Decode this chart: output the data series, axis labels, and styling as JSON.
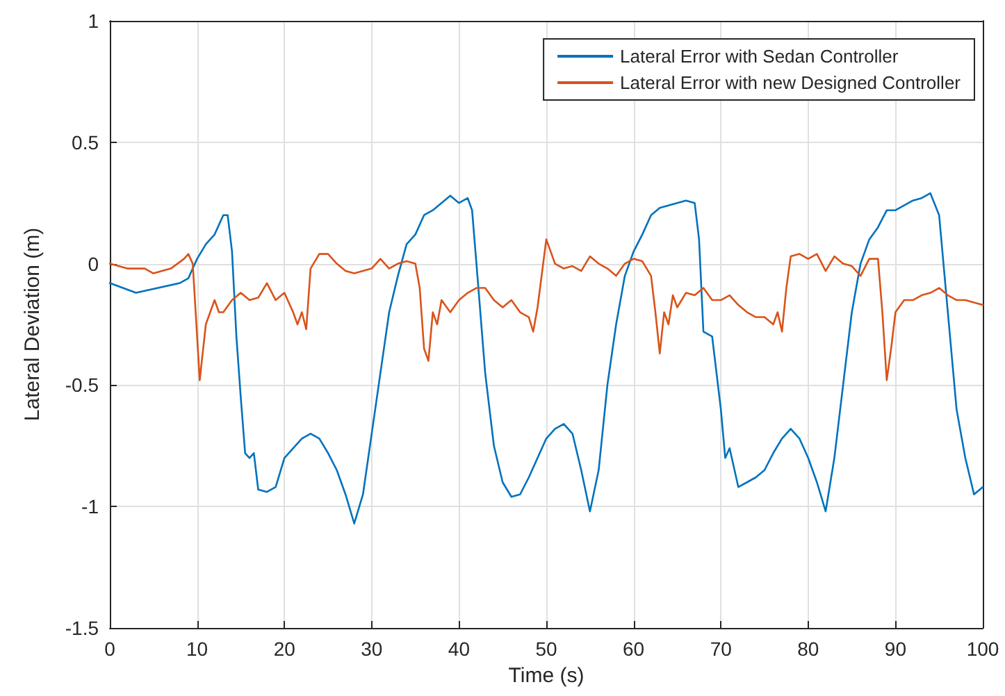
{
  "chart_data": {
    "type": "line",
    "xlabel": "Time (s)",
    "ylabel": "Lateral Deviation (m)",
    "xlim": [
      0,
      100
    ],
    "xticks": [
      0,
      10,
      20,
      30,
      40,
      50,
      60,
      70,
      80,
      90,
      100
    ],
    "ylim": [
      -1.5,
      1
    ],
    "yticks": [
      -1.5,
      -1,
      -0.5,
      0,
      0.5,
      1
    ],
    "grid": true,
    "legend": "top right",
    "marker": "none",
    "line_style": "solid",
    "series": [
      {
        "name": "Lateral Error with Sedan Controller",
        "color": "#0072bd",
        "x": [
          0,
          3,
          8,
          9,
          10,
          11,
          12,
          13,
          13.5,
          14,
          14.5,
          15,
          15.5,
          16,
          16.5,
          17,
          18,
          19,
          20,
          21,
          22,
          23,
          24,
          25,
          26,
          27,
          28,
          29,
          30,
          31,
          32,
          33,
          34,
          35,
          36,
          37,
          38,
          39,
          40,
          41,
          41.5,
          42,
          43,
          44,
          45,
          46,
          47,
          48,
          49,
          50,
          51,
          52,
          53,
          54,
          55,
          56,
          57,
          58,
          59,
          60,
          61,
          62,
          63,
          64,
          65,
          66,
          67,
          67.5,
          68,
          69,
          70,
          70.5,
          71,
          72,
          73,
          74,
          75,
          76,
          77,
          78,
          79,
          80,
          81,
          82,
          83,
          84,
          85,
          86,
          87,
          88,
          89,
          90,
          91,
          92,
          93,
          94,
          95,
          96,
          97,
          98,
          99,
          100
        ],
        "values": [
          -0.08,
          -0.12,
          -0.08,
          -0.06,
          0.02,
          0.08,
          0.12,
          0.2,
          0.2,
          0.05,
          -0.3,
          -0.55,
          -0.78,
          -0.8,
          -0.78,
          -0.93,
          -0.94,
          -0.92,
          -0.8,
          -0.76,
          -0.72,
          -0.7,
          -0.72,
          -0.78,
          -0.85,
          -0.95,
          -1.07,
          -0.95,
          -0.7,
          -0.45,
          -0.2,
          -0.05,
          0.08,
          0.12,
          0.2,
          0.22,
          0.25,
          0.28,
          0.25,
          0.27,
          0.22,
          0,
          -0.45,
          -0.75,
          -0.9,
          -0.96,
          -0.95,
          -0.88,
          -0.8,
          -0.72,
          -0.68,
          -0.66,
          -0.7,
          -0.85,
          -1.02,
          -0.85,
          -0.5,
          -0.25,
          -0.05,
          0.05,
          0.12,
          0.2,
          0.23,
          0.24,
          0.25,
          0.26,
          0.25,
          0.1,
          -0.28,
          -0.3,
          -0.6,
          -0.8,
          -0.76,
          -0.92,
          -0.9,
          -0.88,
          -0.85,
          -0.78,
          -0.72,
          -0.68,
          -0.72,
          -0.8,
          -0.9,
          -1.02,
          -0.8,
          -0.5,
          -0.2,
          0,
          0.1,
          0.15,
          0.22,
          0.22,
          0.24,
          0.26,
          0.27,
          0.29,
          0.2,
          -0.2,
          -0.6,
          -0.8,
          -0.95,
          -0.92
        ]
      },
      {
        "name": "Lateral Error with new Designed Controller",
        "color": "#d95319",
        "x": [
          0,
          2,
          4,
          5,
          7,
          8.5,
          9,
          9.5,
          10,
          10.3,
          11,
          12,
          12.5,
          13,
          14,
          15,
          16,
          17,
          18,
          19,
          20,
          21,
          21.5,
          22,
          22.5,
          23,
          24,
          25,
          26,
          27,
          28,
          29,
          30,
          31,
          32,
          33,
          34,
          35,
          35.5,
          36,
          36.5,
          37,
          37.5,
          38,
          39,
          40,
          41,
          42,
          43,
          44,
          45,
          46,
          47,
          48,
          48.5,
          49,
          50,
          51,
          52,
          53,
          54,
          55,
          56,
          57,
          58,
          59,
          60,
          61,
          62,
          62.5,
          63,
          63.5,
          64,
          64.5,
          65,
          66,
          67,
          68,
          69,
          70,
          71,
          72,
          73,
          74,
          75,
          76,
          76.5,
          77,
          77.5,
          78,
          79,
          80,
          81,
          82,
          83,
          84,
          85,
          86,
          87,
          88,
          88.5,
          89,
          89.5,
          90,
          91,
          92,
          93,
          94,
          95,
          96,
          97,
          98,
          99,
          100
        ],
        "values": [
          0,
          -0.02,
          -0.02,
          -0.04,
          -0.02,
          0.02,
          0.04,
          0,
          -0.3,
          -0.48,
          -0.25,
          -0.15,
          -0.2,
          -0.2,
          -0.15,
          -0.12,
          -0.15,
          -0.14,
          -0.08,
          -0.15,
          -0.12,
          -0.2,
          -0.25,
          -0.2,
          -0.27,
          -0.02,
          0.04,
          0.04,
          0,
          -0.03,
          -0.04,
          -0.03,
          -0.02,
          0.02,
          -0.02,
          0,
          0.01,
          0,
          -0.1,
          -0.35,
          -0.4,
          -0.2,
          -0.25,
          -0.15,
          -0.2,
          -0.15,
          -0.12,
          -0.1,
          -0.1,
          -0.15,
          -0.18,
          -0.15,
          -0.2,
          -0.22,
          -0.28,
          -0.18,
          0.1,
          0,
          -0.02,
          -0.01,
          -0.03,
          0.03,
          0,
          -0.02,
          -0.05,
          0,
          0.02,
          0.01,
          -0.05,
          -0.2,
          -0.37,
          -0.2,
          -0.25,
          -0.13,
          -0.18,
          -0.12,
          -0.13,
          -0.1,
          -0.15,
          -0.15,
          -0.13,
          -0.17,
          -0.2,
          -0.22,
          -0.22,
          -0.25,
          -0.2,
          -0.28,
          -0.1,
          0.03,
          0.04,
          0.02,
          0.04,
          -0.03,
          0.03,
          0,
          -0.01,
          -0.05,
          0.02,
          0.02,
          -0.2,
          -0.48,
          -0.35,
          -0.2,
          -0.15,
          -0.15,
          -0.13,
          -0.12,
          -0.1,
          -0.13,
          -0.15,
          -0.15,
          -0.16,
          -0.17
        ]
      }
    ]
  }
}
